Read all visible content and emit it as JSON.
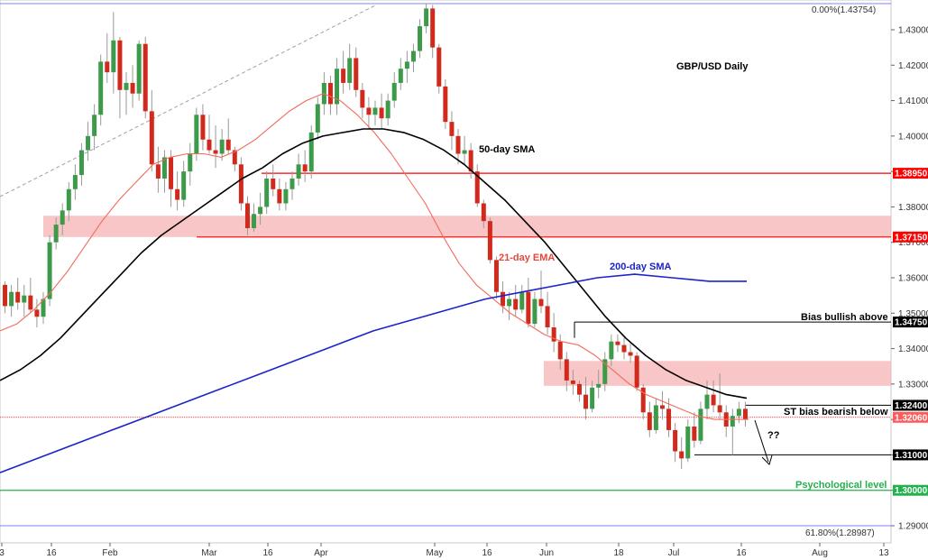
{
  "chart_data": {
    "type": "candlestick",
    "title": "GBP/USD Daily",
    "ylim": [
      1.2855,
      1.4385
    ],
    "y_ticks": [
      "1.43000",
      "1.42000",
      "1.41000",
      "1.40000",
      "1.39000",
      "1.38000",
      "1.37000",
      "1.36000",
      "1.35000",
      "1.34000",
      "1.33000",
      "1.32000",
      "1.31000",
      "1.30000",
      "1.29000"
    ],
    "x_ticks": [
      "3",
      "16",
      "Feb",
      "Mar",
      "16",
      "Apr",
      "May",
      "16",
      "Jun",
      "18",
      "Jul",
      "16",
      "Aug",
      "13"
    ],
    "candles": [
      [
        1.358,
        1.359,
        1.35,
        1.352
      ],
      [
        1.352,
        1.358,
        1.349,
        1.356
      ],
      [
        1.356,
        1.36,
        1.351,
        1.353
      ],
      [
        1.353,
        1.358,
        1.349,
        1.355
      ],
      [
        1.355,
        1.36,
        1.35,
        1.351
      ],
      [
        1.351,
        1.354,
        1.346,
        1.349
      ],
      [
        1.349,
        1.356,
        1.347,
        1.354
      ],
      [
        1.354,
        1.372,
        1.352,
        1.37
      ],
      [
        1.37,
        1.377,
        1.368,
        1.375
      ],
      [
        1.375,
        1.381,
        1.372,
        1.379
      ],
      [
        1.379,
        1.387,
        1.376,
        1.385
      ],
      [
        1.385,
        1.392,
        1.382,
        1.389
      ],
      [
        1.389,
        1.398,
        1.386,
        1.396
      ],
      [
        1.396,
        1.404,
        1.393,
        1.4
      ],
      [
        1.4,
        1.409,
        1.396,
        1.406
      ],
      [
        1.406,
        1.423,
        1.403,
        1.421
      ],
      [
        1.421,
        1.429,
        1.415,
        1.418
      ],
      [
        1.418,
        1.435,
        1.412,
        1.427
      ],
      [
        1.427,
        1.428,
        1.405,
        1.413
      ],
      [
        1.413,
        1.418,
        1.406,
        1.415
      ],
      [
        1.415,
        1.42,
        1.408,
        1.412
      ],
      [
        1.412,
        1.427,
        1.41,
        1.426
      ],
      [
        1.426,
        1.428,
        1.405,
        1.407
      ],
      [
        1.407,
        1.413,
        1.39,
        1.392
      ],
      [
        1.392,
        1.397,
        1.384,
        1.388
      ],
      [
        1.388,
        1.396,
        1.384,
        1.394
      ],
      [
        1.394,
        1.396,
        1.38,
        1.385
      ],
      [
        1.385,
        1.39,
        1.379,
        1.382
      ],
      [
        1.382,
        1.393,
        1.38,
        1.39
      ],
      [
        1.39,
        1.398,
        1.386,
        1.395
      ],
      [
        1.395,
        1.408,
        1.393,
        1.406
      ],
      [
        1.406,
        1.409,
        1.396,
        1.399
      ],
      [
        1.399,
        1.406,
        1.395,
        1.396
      ],
      [
        1.396,
        1.403,
        1.391,
        1.395
      ],
      [
        1.395,
        1.402,
        1.393,
        1.399
      ],
      [
        1.399,
        1.405,
        1.395,
        1.396
      ],
      [
        1.396,
        1.397,
        1.39,
        1.392
      ],
      [
        1.392,
        1.394,
        1.379,
        1.381
      ],
      [
        1.381,
        1.383,
        1.372,
        1.374
      ],
      [
        1.374,
        1.381,
        1.373,
        1.378
      ],
      [
        1.378,
        1.384,
        1.375,
        1.38
      ],
      [
        1.38,
        1.39,
        1.378,
        1.388
      ],
      [
        1.388,
        1.392,
        1.383,
        1.385
      ],
      [
        1.385,
        1.388,
        1.379,
        1.381
      ],
      [
        1.381,
        1.387,
        1.379,
        1.385
      ],
      [
        1.385,
        1.39,
        1.382,
        1.388
      ],
      [
        1.388,
        1.395,
        1.386,
        1.392
      ],
      [
        1.392,
        1.396,
        1.387,
        1.39
      ],
      [
        1.39,
        1.403,
        1.388,
        1.401
      ],
      [
        1.401,
        1.411,
        1.399,
        1.409
      ],
      [
        1.409,
        1.418,
        1.406,
        1.415
      ],
      [
        1.415,
        1.417,
        1.406,
        1.409
      ],
      [
        1.409,
        1.422,
        1.406,
        1.419
      ],
      [
        1.419,
        1.424,
        1.412,
        1.415
      ],
      [
        1.415,
        1.426,
        1.413,
        1.422
      ],
      [
        1.422,
        1.425,
        1.411,
        1.413
      ],
      [
        1.413,
        1.415,
        1.405,
        1.408
      ],
      [
        1.408,
        1.411,
        1.402,
        1.406
      ],
      [
        1.406,
        1.41,
        1.403,
        1.408
      ],
      [
        1.408,
        1.412,
        1.402,
        1.405
      ],
      [
        1.405,
        1.412,
        1.403,
        1.41
      ],
      [
        1.41,
        1.418,
        1.408,
        1.415
      ],
      [
        1.415,
        1.422,
        1.413,
        1.419
      ],
      [
        1.419,
        1.424,
        1.415,
        1.421
      ],
      [
        1.421,
        1.426,
        1.418,
        1.424
      ],
      [
        1.424,
        1.433,
        1.422,
        1.431
      ],
      [
        1.431,
        1.4375,
        1.429,
        1.436
      ],
      [
        1.436,
        1.437,
        1.422,
        1.425
      ],
      [
        1.425,
        1.426,
        1.412,
        1.414
      ],
      [
        1.414,
        1.416,
        1.402,
        1.404
      ],
      [
        1.404,
        1.407,
        1.396,
        1.4
      ],
      [
        1.4,
        1.402,
        1.392,
        1.395
      ],
      [
        1.395,
        1.4,
        1.392,
        1.396
      ],
      [
        1.396,
        1.398,
        1.388,
        1.39
      ],
      [
        1.39,
        1.392,
        1.38,
        1.381
      ],
      [
        1.381,
        1.382,
        1.374,
        1.376
      ],
      [
        1.376,
        1.377,
        1.364,
        1.365
      ],
      [
        1.365,
        1.366,
        1.354,
        1.356
      ],
      [
        1.356,
        1.359,
        1.35,
        1.352
      ],
      [
        1.352,
        1.356,
        1.348,
        1.354
      ],
      [
        1.354,
        1.358,
        1.349,
        1.351
      ],
      [
        1.351,
        1.358,
        1.35,
        1.356
      ],
      [
        1.356,
        1.36,
        1.346,
        1.347
      ],
      [
        1.347,
        1.356,
        1.346,
        1.354
      ],
      [
        1.354,
        1.362,
        1.35,
        1.352
      ],
      [
        1.352,
        1.356,
        1.344,
        1.346
      ],
      [
        1.346,
        1.35,
        1.339,
        1.342
      ],
      [
        1.342,
        1.344,
        1.334,
        1.337
      ],
      [
        1.337,
        1.339,
        1.328,
        1.331
      ],
      [
        1.331,
        1.334,
        1.327,
        1.33
      ],
      [
        1.33,
        1.331,
        1.325,
        1.327
      ],
      [
        1.327,
        1.332,
        1.32,
        1.323
      ],
      [
        1.323,
        1.331,
        1.322,
        1.329
      ],
      [
        1.329,
        1.334,
        1.326,
        1.33
      ],
      [
        1.33,
        1.339,
        1.328,
        1.337
      ],
      [
        1.337,
        1.344,
        1.335,
        1.342
      ],
      [
        1.342,
        1.344,
        1.339,
        1.341
      ],
      [
        1.341,
        1.343,
        1.337,
        1.339
      ],
      [
        1.339,
        1.342,
        1.336,
        1.338
      ],
      [
        1.338,
        1.339,
        1.328,
        1.329
      ],
      [
        1.329,
        1.33,
        1.32,
        1.322
      ],
      [
        1.322,
        1.325,
        1.315,
        1.317
      ],
      [
        1.317,
        1.326,
        1.316,
        1.324
      ],
      [
        1.324,
        1.328,
        1.32,
        1.323
      ],
      [
        1.323,
        1.326,
        1.315,
        1.317
      ],
      [
        1.317,
        1.319,
        1.308,
        1.311
      ],
      [
        1.311,
        1.315,
        1.306,
        1.309
      ],
      [
        1.309,
        1.32,
        1.308,
        1.318
      ],
      [
        1.318,
        1.322,
        1.312,
        1.314
      ],
      [
        1.314,
        1.325,
        1.313,
        1.323
      ],
      [
        1.323,
        1.331,
        1.32,
        1.327
      ],
      [
        1.327,
        1.331,
        1.322,
        1.324
      ],
      [
        1.324,
        1.333,
        1.32,
        1.322
      ],
      [
        1.322,
        1.324,
        1.315,
        1.318
      ],
      [
        1.318,
        1.323,
        1.31,
        1.321
      ],
      [
        1.321,
        1.325,
        1.319,
        1.323
      ],
      [
        1.323,
        1.325,
        1.318,
        1.32
      ]
    ],
    "series": [
      {
        "name": "21-day EMA",
        "color": "#f26b5b",
        "values": [
          [
            1.345,
            1.347,
            1.351,
            1.356,
            1.362,
            1.369,
            1.376,
            1.382,
            1.387,
            1.392,
            1.394,
            1.395,
            1.395,
            1.394,
            1.396,
            1.399,
            1.403,
            1.407,
            1.41,
            1.412,
            1.41,
            1.406,
            1.401,
            1.395,
            1.388,
            1.381,
            1.372,
            1.364,
            1.358,
            1.354,
            1.35,
            1.347,
            1.344,
            1.342,
            1.341,
            1.338,
            1.334,
            1.33,
            1.327,
            1.325,
            1.323,
            1.321,
            1.32,
            1.32,
            1.32
          ]
        ]
      },
      {
        "name": "50-day SMA",
        "color": "#000000",
        "values": [
          [
            1.331,
            1.334,
            1.338,
            1.343,
            1.349,
            1.355,
            1.361,
            1.367,
            1.372,
            1.376,
            1.38,
            1.384,
            1.388,
            1.391,
            1.395,
            1.398,
            1.4,
            1.401,
            1.402,
            1.402,
            1.401,
            1.399,
            1.396,
            1.392,
            1.387,
            1.382,
            1.376,
            1.37,
            1.363,
            1.356,
            1.349,
            1.343,
            1.338,
            1.334,
            1.331,
            1.329,
            1.327,
            1.326
          ]
        ]
      },
      {
        "name": "200-day SMA",
        "color": "#1c23c8",
        "values": [
          [
            1.305,
            1.309,
            1.313,
            1.317,
            1.321,
            1.325,
            1.329,
            1.333,
            1.337,
            1.341,
            1.345,
            1.348,
            1.351,
            1.354,
            1.356,
            1.358,
            1.36,
            1.361,
            1.36,
            1.359,
            1.359
          ]
        ]
      }
    ],
    "levels": [
      {
        "value": 1.3895,
        "label": "1.38950",
        "color": "#ff0000",
        "bg": "#ff0000"
      },
      {
        "value": 1.3715,
        "label": "1.37150",
        "color": "#ff0000",
        "bg": "#ff0000"
      },
      {
        "value": 1.3475,
        "label": "1.34750",
        "color": "#000000",
        "bg": "#000000"
      },
      {
        "value": 1.324,
        "label": "1.32400",
        "color": "#000000",
        "bg": "#000000"
      },
      {
        "value": 1.3206,
        "label": "1.32060",
        "color": "#ff0000",
        "bg": "#ff5a5a"
      },
      {
        "value": 1.31,
        "label": "1.31000",
        "color": "#000000",
        "bg": "#000000"
      },
      {
        "value": 1.3,
        "label": "1.30000",
        "color": "#22b14c",
        "bg": "#22b14c"
      }
    ],
    "zones": [
      {
        "from": 1.3715,
        "to": 1.3775,
        "color": "#f6b8b8"
      },
      {
        "from": 1.3295,
        "to": 1.3365,
        "color": "#f6b8b8"
      }
    ],
    "fib_top": "0.00%(1.43754)",
    "fib_bottom": "61.80%(1.28987)",
    "annotations": {
      "sma50": "50-day SMA",
      "ema21": "21-day EMA",
      "sma200": "200-day SMA",
      "bias_bullish": "Bias bullish above",
      "bias_bearish": "ST bias bearish below",
      "psych": "Psychological level",
      "question": "??"
    },
    "colors": {
      "up": "#3c9a4a",
      "down": "#d12a1d",
      "wick": "#999999",
      "fib": "#5a5aff"
    }
  }
}
